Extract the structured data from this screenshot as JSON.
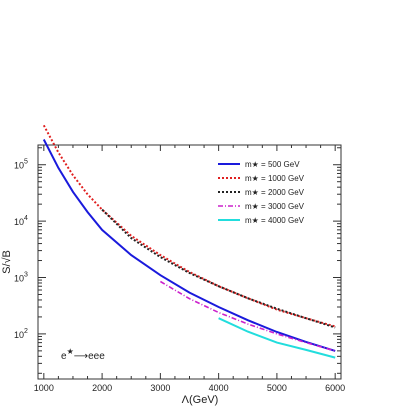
{
  "chart_data": {
    "type": "line",
    "title": "",
    "xlabel": "Λ(GeV)",
    "ylabel": "S/√B",
    "xlim": [
      900,
      6100
    ],
    "ylim_log10": [
      1.2,
      5.35
    ],
    "y_scale": "log",
    "x_ticks": [
      1000,
      2000,
      3000,
      4000,
      5000,
      6000
    ],
    "y_ticks": [
      {
        "value": 100,
        "base": "10",
        "exp": "2"
      },
      {
        "value": 1000,
        "base": "10",
        "exp": "3"
      },
      {
        "value": 10000,
        "base": "10",
        "exp": "4"
      },
      {
        "value": 100000,
        "base": "10",
        "exp": "5"
      }
    ],
    "grid": false,
    "legend_position": "top-right",
    "annotation": {
      "text_base": "e",
      "text_sup": "★",
      "text_arrow": "⟶",
      "text_tail": "eee"
    },
    "series": [
      {
        "name": "m★ = 500 GeV",
        "legend_label": "m★ =  500 GeV",
        "color": "#1a1adc",
        "dash": "solid",
        "x": [
          1000,
          1250,
          1500,
          1750,
          2000,
          2500,
          3000,
          3500,
          4000,
          4500,
          5000,
          5500,
          6000
        ],
        "y": [
          280000,
          88000,
          33000,
          14500,
          7000,
          2500,
          1100,
          540,
          300,
          175,
          108,
          72,
          50
        ]
      },
      {
        "name": "m★ = 1000 GeV",
        "legend_label": "m★ = 1000 GeV",
        "color": "#e02020",
        "dash": "dot",
        "x": [
          1000,
          1250,
          1500,
          1750,
          2000,
          2500,
          3000,
          3500,
          4000,
          4500,
          5000,
          5500,
          6000
        ],
        "y": [
          500000,
          165000,
          65000,
          30000,
          16000,
          5500,
          2500,
          1250,
          700,
          430,
          270,
          190,
          135
        ]
      },
      {
        "name": "m★ = 2000 GeV",
        "legend_label": "m★ = 2000 GeV",
        "color": "#222222",
        "dash": "dot",
        "x": [
          2000,
          2500,
          3000,
          3500,
          4000,
          4500,
          5000,
          5500,
          6000
        ],
        "y": [
          16000,
          5000,
          2300,
          1200,
          700,
          430,
          280,
          190,
          130
        ]
      },
      {
        "name": "m★ = 3000 GeV",
        "legend_label": "m★ = 3000 GeV",
        "color": "#cc22cc",
        "dash": "dashdot",
        "x": [
          3000,
          3500,
          4000,
          4500,
          5000,
          5500,
          6000
        ],
        "y": [
          850,
          420,
          240,
          150,
          100,
          70,
          50
        ]
      },
      {
        "name": "m★ = 4000 GeV",
        "legend_label": "m★ = 4000 GeV",
        "color": "#22dddd",
        "dash": "solid",
        "x": [
          4000,
          4500,
          5000,
          5500,
          6000
        ],
        "y": [
          190,
          110,
          70,
          52,
          38
        ]
      }
    ]
  }
}
